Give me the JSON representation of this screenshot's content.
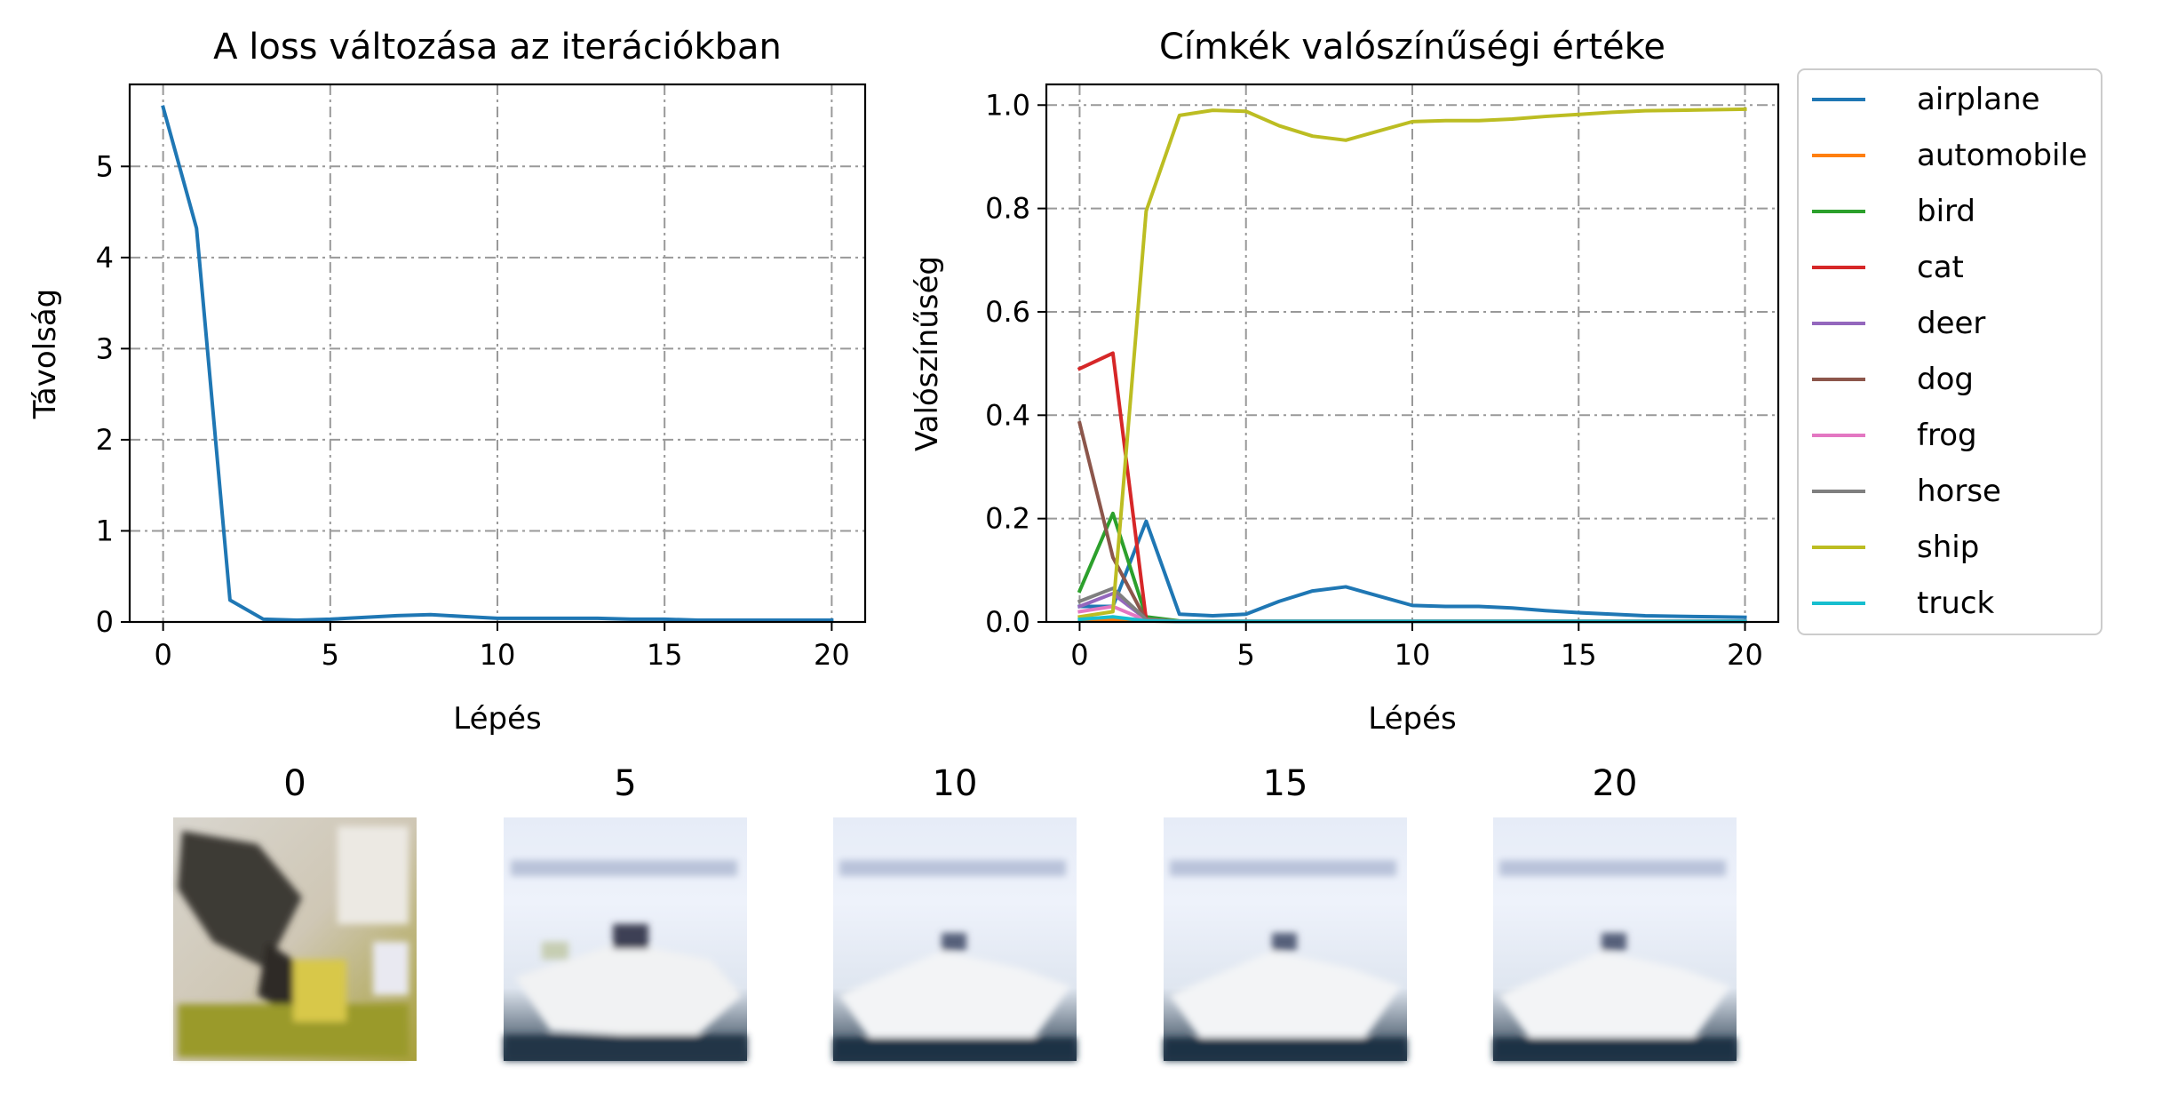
{
  "chart_data": [
    {
      "type": "line",
      "title": "A loss változása az iterációkban",
      "xlabel": "Lépés",
      "ylabel": "Távolság",
      "xlim": [
        -1,
        21
      ],
      "ylim": [
        0,
        5.9
      ],
      "xticks": [
        "0",
        "5",
        "10",
        "15",
        "20"
      ],
      "yticks": [
        "0",
        "1",
        "2",
        "3",
        "4",
        "5"
      ],
      "grid": true,
      "series": [
        {
          "color": "#1f77b4",
          "x": [
            0,
            1,
            2,
            3,
            4,
            5,
            6,
            7,
            8,
            9,
            10,
            11,
            12,
            13,
            14,
            15,
            16,
            17,
            18,
            19,
            20
          ],
          "values": [
            5.65,
            4.32,
            0.24,
            0.03,
            0.02,
            0.03,
            0.05,
            0.07,
            0.08,
            0.06,
            0.04,
            0.04,
            0.04,
            0.04,
            0.03,
            0.03,
            0.02,
            0.02,
            0.02,
            0.02,
            0.02
          ]
        }
      ]
    },
    {
      "type": "line",
      "title": "Címkék valószínűségi értéke",
      "xlabel": "Lépés",
      "ylabel": "Valószínűség",
      "xlim": [
        -1,
        21
      ],
      "ylim": [
        0,
        1.04
      ],
      "xticks": [
        "0",
        "5",
        "10",
        "15",
        "20"
      ],
      "yticks": [
        "0.0",
        "0.2",
        "0.4",
        "0.6",
        "0.8",
        "1.0"
      ],
      "grid": true,
      "legend": "outside-right",
      "x": [
        0,
        1,
        2,
        3,
        4,
        5,
        6,
        7,
        8,
        9,
        10,
        11,
        12,
        13,
        14,
        15,
        16,
        17,
        18,
        19,
        20
      ],
      "series": [
        {
          "name": "airplane",
          "color": "#1f77b4",
          "values": [
            0.03,
            0.03,
            0.195,
            0.015,
            0.012,
            0.015,
            0.04,
            0.06,
            0.068,
            0.05,
            0.032,
            0.03,
            0.03,
            0.027,
            0.022,
            0.018,
            0.015,
            0.012,
            0.011,
            0.01,
            0.009
          ]
        },
        {
          "name": "automobile",
          "color": "#ff7f0e",
          "values": [
            0.005,
            0.005,
            0.002,
            0.001,
            0.001,
            0.001,
            0.001,
            0.001,
            0.001,
            0.001,
            0.001,
            0.001,
            0.001,
            0.001,
            0.001,
            0.001,
            0.001,
            0.001,
            0.001,
            0.001,
            0.001
          ]
        },
        {
          "name": "bird",
          "color": "#2ca02c",
          "values": [
            0.06,
            0.21,
            0.01,
            0.002,
            0.001,
            0.001,
            0.001,
            0.001,
            0.001,
            0.001,
            0.001,
            0.001,
            0.001,
            0.001,
            0.001,
            0.001,
            0.001,
            0.001,
            0.001,
            0.001,
            0.001
          ]
        },
        {
          "name": "cat",
          "color": "#d62728",
          "values": [
            0.49,
            0.52,
            0.005,
            0.001,
            0.001,
            0.001,
            0.001,
            0.001,
            0.001,
            0.001,
            0.001,
            0.001,
            0.001,
            0.001,
            0.001,
            0.001,
            0.001,
            0.001,
            0.001,
            0.001,
            0.001
          ]
        },
        {
          "name": "deer",
          "color": "#9467bd",
          "values": [
            0.03,
            0.055,
            0.005,
            0.001,
            0.001,
            0.001,
            0.001,
            0.001,
            0.001,
            0.001,
            0.001,
            0.001,
            0.001,
            0.001,
            0.001,
            0.001,
            0.001,
            0.001,
            0.001,
            0.001,
            0.001
          ]
        },
        {
          "name": "dog",
          "color": "#8c564b",
          "values": [
            0.385,
            0.125,
            0.003,
            0.001,
            0.001,
            0.001,
            0.001,
            0.001,
            0.001,
            0.001,
            0.001,
            0.001,
            0.001,
            0.001,
            0.001,
            0.001,
            0.001,
            0.001,
            0.001,
            0.001,
            0.001
          ]
        },
        {
          "name": "frog",
          "color": "#e377c2",
          "values": [
            0.02,
            0.03,
            0.003,
            0.001,
            0.001,
            0.001,
            0.001,
            0.001,
            0.001,
            0.001,
            0.001,
            0.001,
            0.001,
            0.001,
            0.001,
            0.001,
            0.001,
            0.001,
            0.001,
            0.001,
            0.001
          ]
        },
        {
          "name": "horse",
          "color": "#7f7f7f",
          "values": [
            0.04,
            0.065,
            0.005,
            0.001,
            0.001,
            0.001,
            0.001,
            0.001,
            0.001,
            0.001,
            0.001,
            0.001,
            0.001,
            0.001,
            0.001,
            0.001,
            0.001,
            0.001,
            0.001,
            0.001,
            0.001
          ]
        },
        {
          "name": "ship",
          "color": "#bcbd22",
          "values": [
            0.01,
            0.02,
            0.795,
            0.98,
            0.99,
            0.988,
            0.96,
            0.94,
            0.932,
            0.95,
            0.968,
            0.97,
            0.97,
            0.973,
            0.978,
            0.982,
            0.986,
            0.989,
            0.99,
            0.991,
            0.992
          ]
        },
        {
          "name": "truck",
          "color": "#17becf",
          "values": [
            0.005,
            0.01,
            0.002,
            0.001,
            0.001,
            0.001,
            0.001,
            0.001,
            0.001,
            0.001,
            0.001,
            0.001,
            0.001,
            0.001,
            0.001,
            0.001,
            0.001,
            0.001,
            0.001,
            0.001,
            0.001
          ]
        }
      ]
    }
  ],
  "snapshots": {
    "labels": [
      "0",
      "5",
      "10",
      "15",
      "20"
    ]
  }
}
